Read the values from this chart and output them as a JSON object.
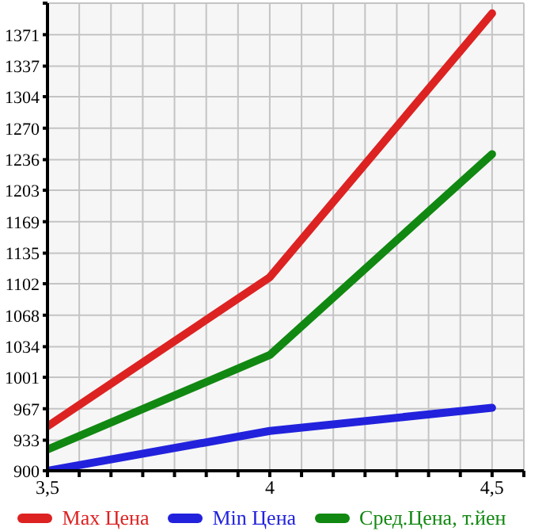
{
  "chart_data": {
    "type": "line",
    "x": [
      3.5,
      4,
      4.5
    ],
    "series": [
      {
        "name": "Max Цена",
        "color": "#dd2222",
        "values": [
          948,
          1109,
          1394
        ]
      },
      {
        "name": "Min Цена",
        "color": "#2222dd",
        "values": [
          900,
          943,
          968
        ]
      },
      {
        "name": "Сред.Цена, т.йен",
        "color": "#118811",
        "values": [
          923,
          1025,
          1242
        ]
      }
    ],
    "xlim": [
      3.5,
      4.5714286
    ],
    "xticks": [
      {
        "value": 3.5,
        "label": "3,5"
      },
      {
        "value": 3.5714286,
        "label": null
      },
      {
        "value": 3.6428571,
        "label": null
      },
      {
        "value": 3.7142857,
        "label": null
      },
      {
        "value": 3.7857143,
        "label": null
      },
      {
        "value": 3.8571429,
        "label": null
      },
      {
        "value": 3.9285714,
        "label": null
      },
      {
        "value": 4,
        "label": "4"
      },
      {
        "value": 4.0714286,
        "label": null
      },
      {
        "value": 4.1428571,
        "label": null
      },
      {
        "value": 4.2142857,
        "label": null
      },
      {
        "value": 4.2857143,
        "label": null
      },
      {
        "value": 4.3571429,
        "label": null
      },
      {
        "value": 4.4285714,
        "label": null
      },
      {
        "value": 4.5,
        "label": "4,5"
      },
      {
        "value": 4.5714286,
        "label": null
      }
    ],
    "ylim": [
      900,
      1405
    ],
    "yticks": [
      900,
      933,
      967,
      1001,
      1034,
      1068,
      1102,
      1135,
      1169,
      1203,
      1236,
      1270,
      1304,
      1337,
      1371,
      {
        "value": 1405,
        "label": null
      }
    ],
    "grid": true,
    "legend": "bottom",
    "marker": "none",
    "line_style": "solid"
  }
}
